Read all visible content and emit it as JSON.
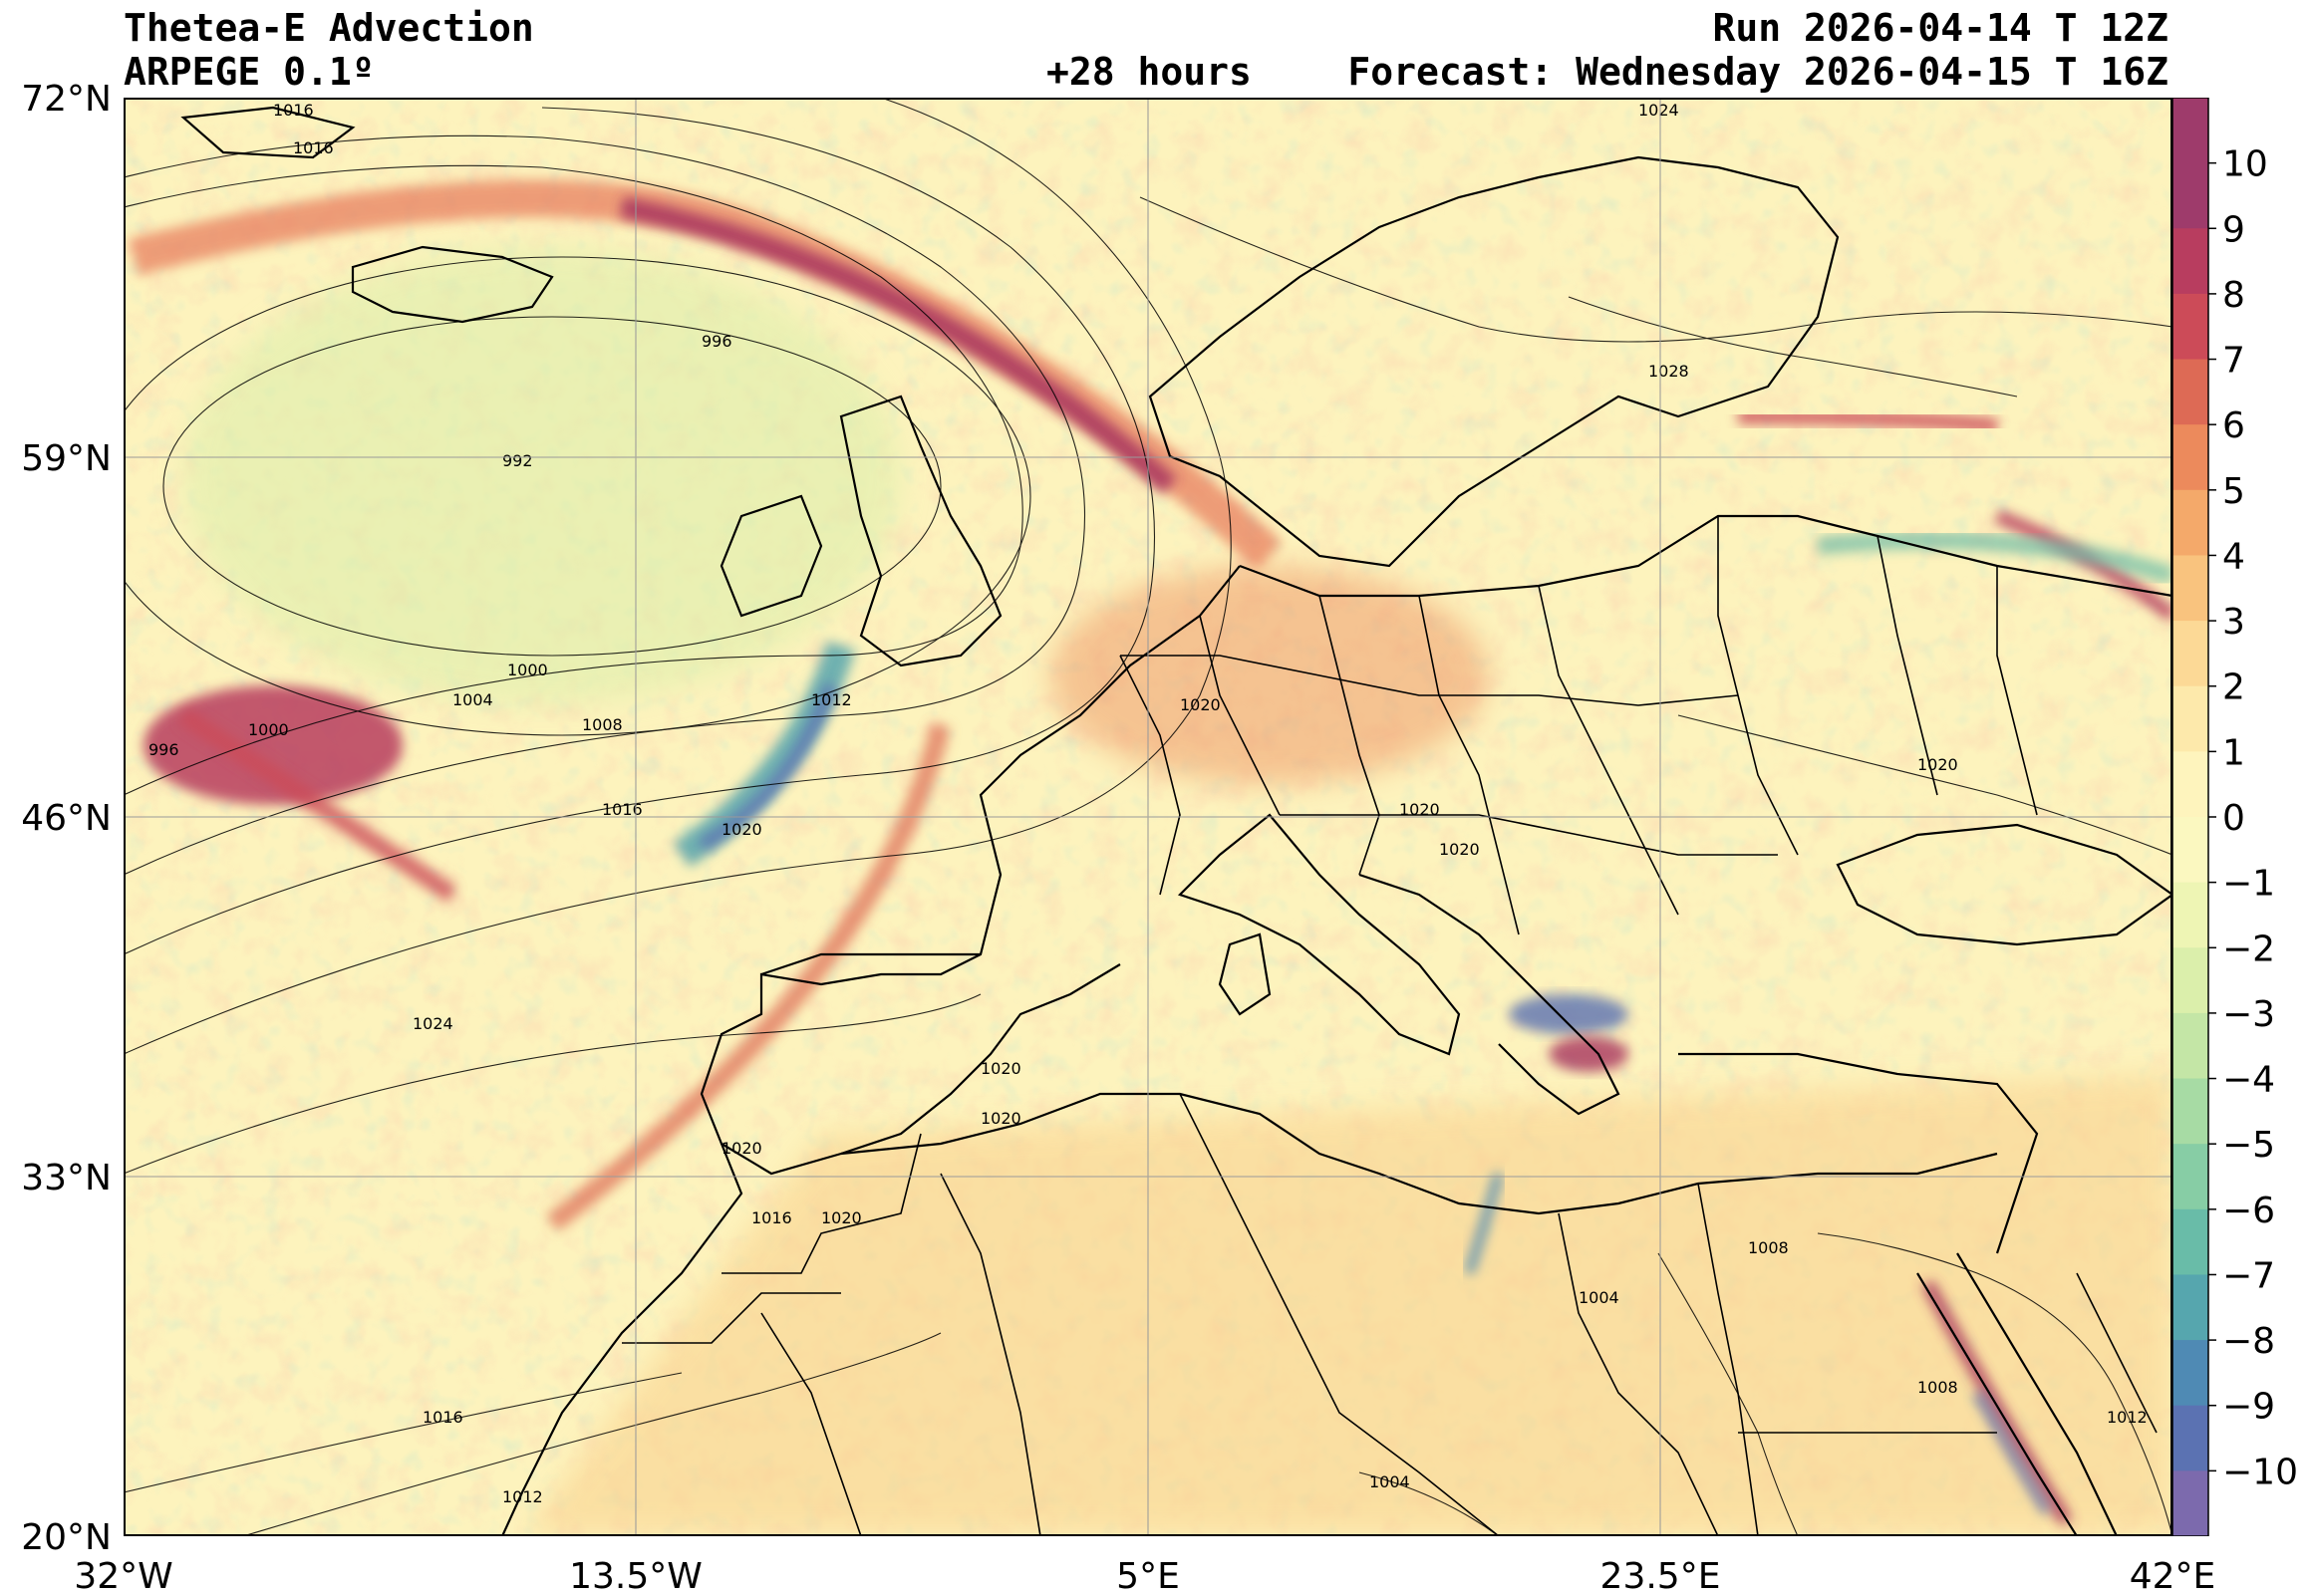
{
  "header": {
    "title_left": "Thetea-E Advection",
    "model": "ARPEGE 0.1º",
    "run": "Run 2026-04-14 T 12Z",
    "lead": "+28 hours",
    "forecast": "Forecast: Wednesday 2026-04-15 T 16Z"
  },
  "axes": {
    "lat_labels": [
      "72°N",
      "59°N",
      "46°N",
      "33°N",
      "20°N"
    ],
    "lon_labels": [
      "32°W",
      "13.5°W",
      "5°E",
      "23.5°E",
      "42°E"
    ]
  },
  "colorbar": {
    "ticks": [
      "10",
      "9",
      "8",
      "7",
      "6",
      "5",
      "4",
      "3",
      "2",
      "1",
      "0",
      "−1",
      "−2",
      "−3",
      "−4",
      "−5",
      "−6",
      "−7",
      "−8",
      "−9",
      "−10"
    ],
    "colors": [
      "#9e3b6b",
      "#b83d5f",
      "#cc4b58",
      "#dd6a55",
      "#ec8a5c",
      "#f4a96a",
      "#f9c37e",
      "#fcd996",
      "#fde9ab",
      "#fef4bd",
      "#fbf8c0",
      "#eef5b4",
      "#dbefab",
      "#c4e6a6",
      "#a7dba4",
      "#87cda5",
      "#69bca8",
      "#56a6ae",
      "#4f8ab4",
      "#5b72b2",
      "#7c6aad"
    ]
  },
  "isobar_labels": [
    "1016",
    "1016",
    "996",
    "992",
    "1000",
    "1004",
    "1008",
    "1012",
    "1016",
    "1020",
    "996",
    "1000",
    "1024",
    "1020",
    "1020",
    "1020",
    "1016",
    "1020",
    "1016",
    "1012",
    "1024",
    "1028",
    "1020",
    "1020",
    "1020",
    "1020",
    "1008",
    "1004",
    "1008",
    "1012",
    "1004"
  ]
}
